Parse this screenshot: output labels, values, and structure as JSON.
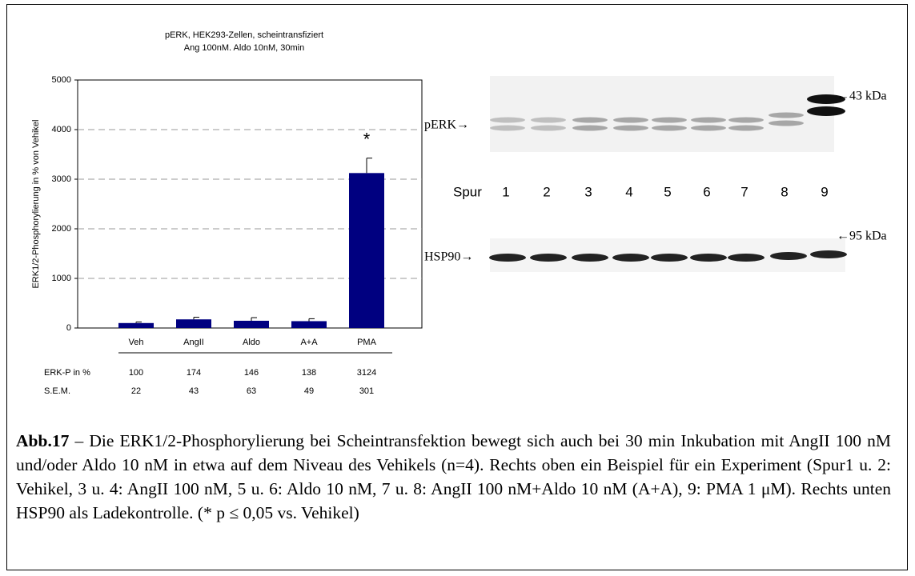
{
  "chart_data": {
    "type": "bar",
    "title": [
      "pERK, HEK293-Zellen, scheintransfiziert",
      "Ang 100nM. Aldo 10nM, 30min"
    ],
    "ylabel": "ERK1/2-Phosphorylierung in % von Vehikel",
    "categories": [
      "Veh",
      "AngII",
      "Aldo",
      "A+A",
      "PMA"
    ],
    "values": [
      100,
      174,
      146,
      138,
      3124
    ],
    "errors": [
      22,
      43,
      63,
      49,
      301
    ],
    "color": "#000080",
    "ylim": [
      0,
      5000
    ],
    "yticks": [
      0,
      1000,
      2000,
      3000,
      4000,
      5000
    ],
    "grid": true,
    "annotation": "*",
    "table_row_labels": [
      "ERK-P in %",
      "S.E.M."
    ]
  },
  "blot": {
    "top_label": "pERK→",
    "top_marker": "←43 kDa",
    "lane_title": "Spur",
    "lanes": [
      "1",
      "2",
      "3",
      "4",
      "5",
      "6",
      "7",
      "8",
      "9"
    ],
    "bottom_label": "HSP90→",
    "bottom_marker": "←95 kDa"
  },
  "caption": {
    "label": "Abb.17",
    "text": " – Die ERK1/2-Phosphorylierung bei Scheintransfektion bewegt sich auch bei 30 min Inkubation mit AngII 100 nM und/oder Aldo 10 nM in etwa auf dem Niveau des Vehikels (n=4). Rechts oben ein Beispiel für ein Experiment (Spur1 u. 2: Vehikel, 3 u. 4: AngII 100 nM, 5 u. 6: Aldo 10 nM, 7 u. 8: AngII 100 nM+Aldo 10 nM (A+A), 9: PMA 1 μM). Rechts unten HSP90 als Ladekontrolle. (* p ≤ 0,05 vs. Vehikel)"
  }
}
